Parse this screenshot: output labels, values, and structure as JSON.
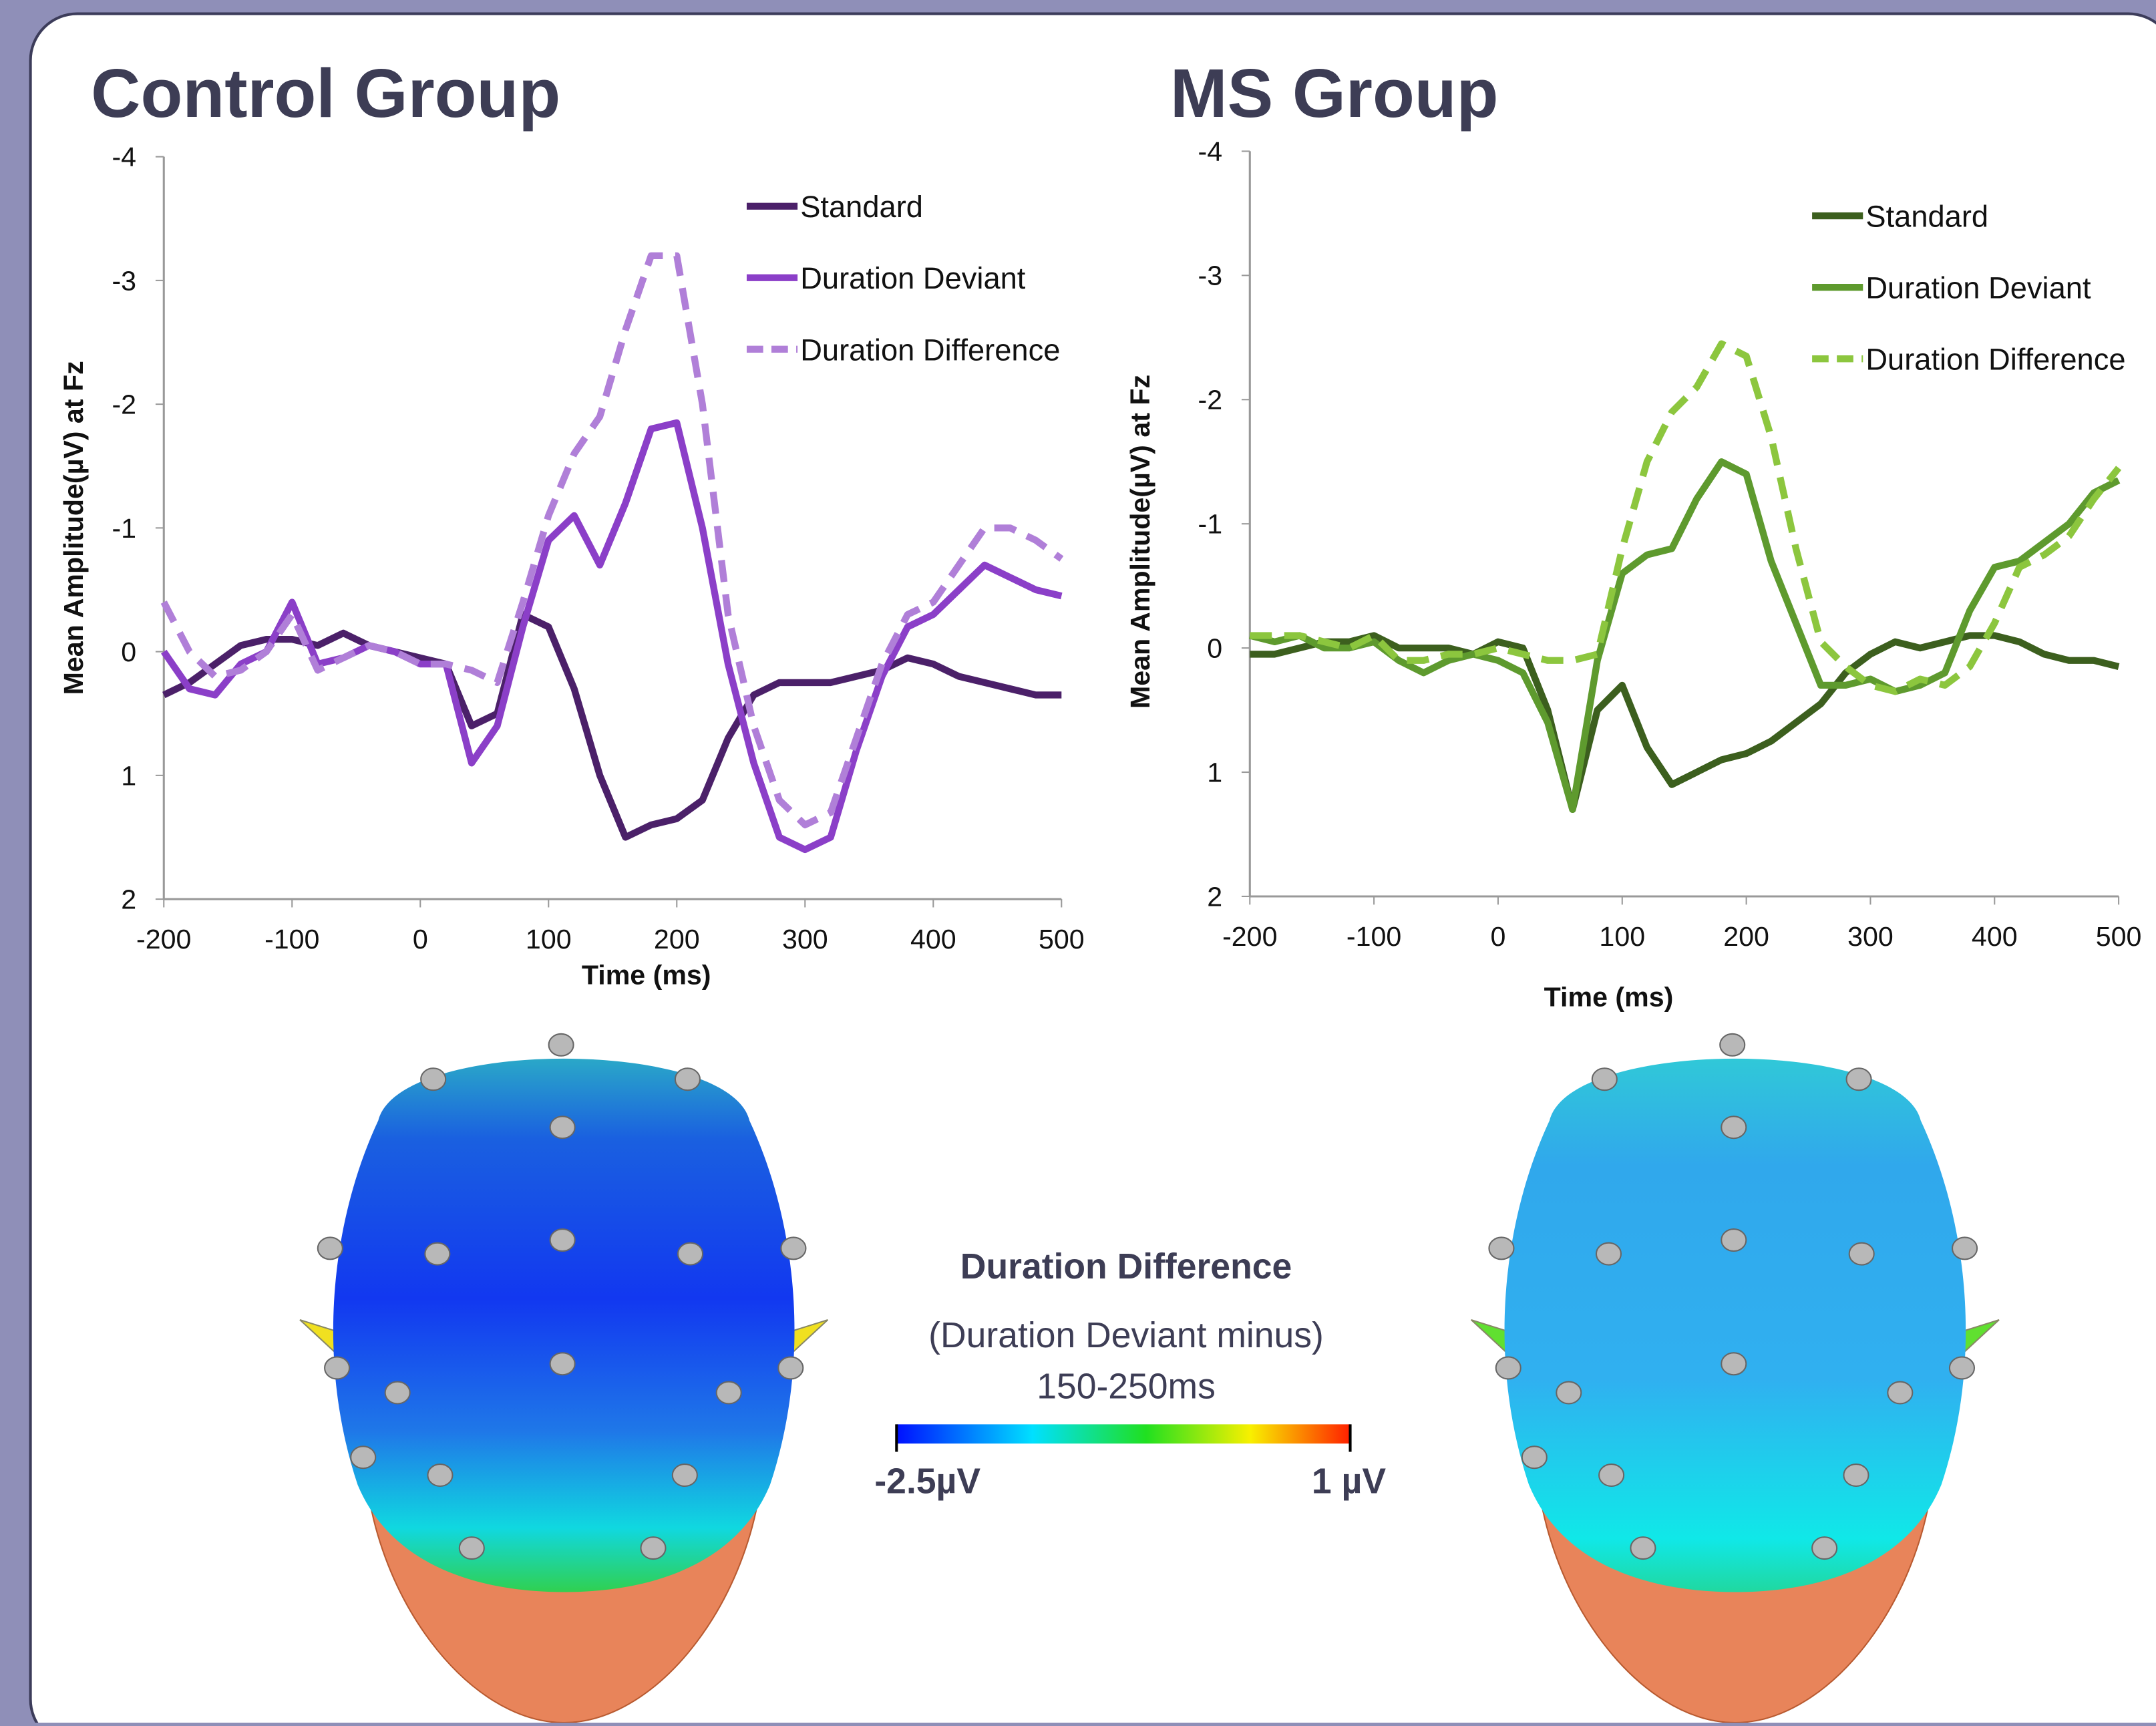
{
  "chart_data": [
    {
      "type": "line",
      "title": "Control Group",
      "x_label": "Time (ms)",
      "y_label": "Mean Amplitude(µV)  at Fz",
      "x": [
        -200,
        -180,
        -160,
        -140,
        -120,
        -100,
        -80,
        -60,
        -40,
        -20,
        0,
        20,
        40,
        60,
        80,
        100,
        120,
        140,
        160,
        180,
        200,
        220,
        240,
        260,
        280,
        300,
        320,
        340,
        360,
        380,
        400,
        420,
        440,
        460,
        480,
        500
      ],
      "xlim": [
        -200,
        500
      ],
      "ylim": [
        2,
        -4
      ],
      "xticks": [
        -200,
        -100,
        0,
        100,
        200,
        300,
        400,
        500
      ],
      "yticks": [
        -4,
        -3,
        -2,
        -1,
        0,
        1,
        2
      ],
      "legend": "top-right",
      "series": [
        {
          "name": "Standard",
          "color": "#4b2069",
          "dashed": false,
          "values": [
            0.35,
            0.25,
            0.1,
            -0.05,
            -0.1,
            -0.1,
            -0.05,
            -0.15,
            -0.05,
            0.0,
            0.05,
            0.1,
            0.6,
            0.5,
            -0.3,
            -0.2,
            0.3,
            1.0,
            1.5,
            1.4,
            1.35,
            1.2,
            0.7,
            0.35,
            0.25,
            0.25,
            0.25,
            0.2,
            0.15,
            0.05,
            0.1,
            0.2,
            0.25,
            0.3,
            0.35,
            0.35
          ]
        },
        {
          "name": "Duration Deviant",
          "color": "#8b3fc8",
          "dashed": false,
          "values": [
            0.0,
            0.3,
            0.35,
            0.1,
            0.0,
            -0.4,
            0.1,
            0.05,
            -0.05,
            0.0,
            0.1,
            0.1,
            0.9,
            0.6,
            -0.2,
            -0.9,
            -1.1,
            -0.7,
            -1.2,
            -1.8,
            -1.85,
            -1.0,
            0.1,
            0.9,
            1.5,
            1.6,
            1.5,
            0.8,
            0.2,
            -0.2,
            -0.3,
            -0.5,
            -0.7,
            -0.6,
            -0.5,
            -0.45
          ]
        },
        {
          "name": "Duration Difference",
          "color": "#b07fd8",
          "dashed": true,
          "values": [
            -0.4,
            0.0,
            0.2,
            0.15,
            0.0,
            -0.3,
            0.15,
            0.05,
            -0.05,
            0.0,
            0.1,
            0.1,
            0.15,
            0.25,
            -0.4,
            -1.1,
            -1.6,
            -1.9,
            -2.6,
            -3.2,
            -3.2,
            -2.0,
            -0.3,
            0.6,
            1.2,
            1.4,
            1.3,
            0.7,
            0.1,
            -0.3,
            -0.4,
            -0.7,
            -1.0,
            -1.0,
            -0.9,
            -0.75
          ]
        }
      ]
    },
    {
      "type": "line",
      "title": "MS Group",
      "x_label": "Time (ms)",
      "y_label": "Mean Amplitude(µV)  at Fz",
      "x": [
        -200,
        -180,
        -160,
        -140,
        -120,
        -100,
        -80,
        -60,
        -40,
        -20,
        0,
        20,
        40,
        60,
        80,
        100,
        120,
        140,
        160,
        180,
        200,
        220,
        240,
        260,
        280,
        300,
        320,
        340,
        360,
        380,
        400,
        420,
        440,
        460,
        480,
        500
      ],
      "xlim": [
        -200,
        500
      ],
      "ylim": [
        2,
        -4
      ],
      "xticks": [
        -200,
        -100,
        0,
        100,
        200,
        300,
        400,
        500
      ],
      "yticks": [
        -4,
        -3,
        -2,
        -1,
        0,
        1,
        2
      ],
      "legend": "top-right",
      "series": [
        {
          "name": "Standard",
          "color": "#3c5f1e",
          "dashed": false,
          "values": [
            0.05,
            0.05,
            0.0,
            -0.05,
            -0.05,
            -0.1,
            0.0,
            0.0,
            0.0,
            0.05,
            -0.05,
            0.0,
            0.5,
            1.3,
            0.5,
            0.3,
            0.8,
            1.1,
            1.0,
            0.9,
            0.85,
            0.75,
            0.6,
            0.45,
            0.2,
            0.05,
            -0.05,
            0.0,
            -0.05,
            -0.1,
            -0.1,
            -0.05,
            0.05,
            0.1,
            0.1,
            0.15
          ]
        },
        {
          "name": "Duration Deviant",
          "color": "#5e9a2e",
          "dashed": false,
          "values": [
            -0.1,
            -0.05,
            -0.1,
            0.0,
            0.0,
            -0.05,
            0.1,
            0.2,
            0.1,
            0.05,
            0.1,
            0.2,
            0.6,
            1.3,
            0.1,
            -0.6,
            -0.75,
            -0.8,
            -1.2,
            -1.5,
            -1.4,
            -0.7,
            -0.2,
            0.3,
            0.3,
            0.25,
            0.35,
            0.3,
            0.2,
            -0.3,
            -0.65,
            -0.7,
            -0.85,
            -1.0,
            -1.25,
            -1.35
          ]
        },
        {
          "name": "Duration Difference",
          "color": "#8cc63e",
          "dashed": true,
          "values": [
            -0.1,
            -0.1,
            -0.1,
            -0.05,
            0.0,
            -0.1,
            0.1,
            0.1,
            0.05,
            0.05,
            0.0,
            0.05,
            0.1,
            0.1,
            0.05,
            -0.8,
            -1.5,
            -1.9,
            -2.1,
            -2.45,
            -2.35,
            -1.7,
            -0.8,
            -0.05,
            0.15,
            0.3,
            0.35,
            0.25,
            0.3,
            0.15,
            -0.2,
            -0.65,
            -0.75,
            -0.9,
            -1.2,
            -1.45
          ]
        }
      ]
    }
  ],
  "topography": {
    "title": "Duration Difference",
    "subtitle": "(Duration Deviant minus)",
    "window": "150-250ms",
    "min_label": "-2.5µV",
    "max_label": "1 µV"
  }
}
